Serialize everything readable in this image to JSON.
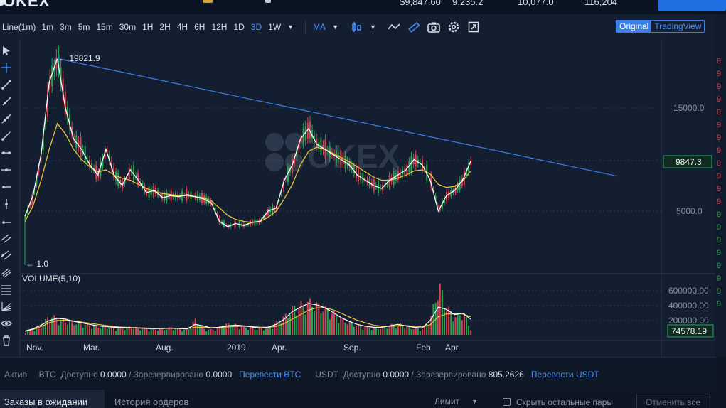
{
  "header": {
    "logo": "OKEX",
    "tickers": [
      "$9,847.60",
      "9,235.2",
      "10,077.0",
      "116,204"
    ]
  },
  "toolbar": {
    "chart_type": "Line(1m)",
    "intervals": [
      "1m",
      "3m",
      "5m",
      "15m",
      "30m",
      "1H",
      "2H",
      "4H",
      "6H",
      "12H",
      "1D",
      "3D",
      "1W"
    ],
    "active_interval": "3D",
    "indicator": "MA",
    "view_original": "Original",
    "view_tradingview": "TradingView"
  },
  "chart": {
    "watermark": "OKEX",
    "high_label": "← 19821.9",
    "low_label": "← 1.0",
    "price_axis": [
      "15000.0",
      "5000.0"
    ],
    "last_price": "9847.3",
    "volume_title": "VOLUME(5,10)",
    "volume_axis": [
      "600000.00",
      "400000.00",
      "200000.00"
    ],
    "last_volume": "74578.19",
    "time_axis": [
      "Nov.",
      "Mar.",
      "Aug.",
      "2019",
      "Apr.",
      "Sep.",
      "Feb.",
      "Apr."
    ]
  },
  "chart_data": {
    "type": "line",
    "title": "",
    "xlabel": "",
    "ylabel": "",
    "ylim": [
      0,
      22000
    ],
    "series": [
      {
        "values": [
          4500,
          6500,
          10500,
          17500,
          19821,
          15000,
          12000,
          11000,
          9500,
          8500,
          11000,
          8500,
          7500,
          9000,
          8000,
          6800,
          7000,
          6300,
          6500,
          6400,
          6600,
          6400,
          6200,
          5800,
          4000,
          3500,
          3800,
          3600,
          3900,
          4000,
          5000,
          5300,
          8000,
          9500,
          12000,
          13000,
          11500,
          11000,
          10500,
          10000,
          9500,
          8500,
          8000,
          7500,
          7200,
          8000,
          8500,
          9000,
          10000,
          9500,
          8000,
          5000,
          6500,
          7000,
          8000,
          9847
        ]
      },
      {
        "values": [
          4000,
          5500,
          8000,
          11000,
          13500,
          12500,
          11000,
          10000,
          9300,
          8800,
          9000,
          8500,
          8200,
          8000,
          7600,
          7200,
          6900,
          6700,
          6600,
          6500,
          6500,
          6400,
          6300,
          6000,
          5300,
          4600,
          4200,
          4000,
          3900,
          4000,
          4400,
          5000,
          6200,
          7600,
          9500,
          10800,
          11200,
          11000,
          10600,
          10200,
          9800,
          9300,
          8800,
          8300,
          8000,
          8000,
          8200,
          8500,
          8900,
          9000,
          8600,
          7600,
          7300,
          7400,
          7900,
          8900
        ]
      }
    ],
    "trendline": {
      "from": 19821.9,
      "to": 8400
    },
    "volume": {
      "values": [
        50000,
        80000,
        140000,
        280000,
        220000,
        200000,
        180000,
        160000,
        140000,
        120000,
        120000,
        100000,
        100000,
        120000,
        100000,
        90000,
        90000,
        90000,
        110000,
        90000,
        80000,
        220000,
        90000,
        80000,
        120000,
        160000,
        140000,
        120000,
        100000,
        90000,
        110000,
        180000,
        260000,
        380000,
        420000,
        460000,
        420000,
        360000,
        300000,
        220000,
        180000,
        140000,
        120000,
        100000,
        110000,
        140000,
        160000,
        120000,
        100000,
        90000,
        250000,
        700000,
        380000,
        260000,
        320000,
        74578
      ],
      "ma5": [
        60000,
        90000,
        140000,
        200000,
        230000,
        220000,
        190000,
        170000,
        150000,
        130000,
        120000,
        110000,
        105000,
        105000,
        100000,
        95000,
        92000,
        95000,
        100000,
        95000,
        90000,
        150000,
        130000,
        100000,
        110000,
        130000,
        140000,
        130000,
        115000,
        100000,
        110000,
        150000,
        220000,
        320000,
        380000,
        430000,
        410000,
        370000,
        310000,
        240000,
        190000,
        150000,
        125000,
        110000,
        110000,
        130000,
        150000,
        130000,
        110000,
        100000,
        200000,
        380000,
        350000,
        280000,
        300000,
        220000
      ],
      "ma10": [
        55000,
        80000,
        120000,
        170000,
        200000,
        205000,
        195000,
        180000,
        165000,
        150000,
        135000,
        120000,
        112000,
        108000,
        104000,
        100000,
        96000,
        95000,
        96000,
        95000,
        92000,
        110000,
        112000,
        108000,
        108000,
        115000,
        122000,
        125000,
        120000,
        112000,
        110000,
        122000,
        160000,
        220000,
        280000,
        340000,
        370000,
        370000,
        345000,
        300000,
        250000,
        205000,
        170000,
        140000,
        125000,
        122000,
        130000,
        132000,
        125000,
        115000,
        145000,
        250000,
        290000,
        290000,
        290000,
        250000
      ],
      "ylim": [
        0,
        700000
      ]
    }
  },
  "right_ticker": {
    "prices": [
      "9",
      "9",
      "9",
      "9",
      "9",
      "9",
      "9",
      "9",
      "9",
      "9",
      "9",
      "9",
      "9",
      "9",
      "9",
      "9",
      "9",
      "9",
      "9",
      "9"
    ]
  },
  "balance": {
    "label": "Актив",
    "btc": "BTC",
    "available": "Доступно",
    "btc_available": "0.0000",
    "reserved": "/ Зарезервировано",
    "btc_reserved": "0.0000",
    "transfer_btc": "Перевести BTC",
    "usdt": "USDT",
    "usdt_available": "0.0000",
    "usdt_reserved": "805.2626",
    "transfer_usdt": "Перевести USDT"
  },
  "orders": {
    "tab_pending": "Заказы в ожидании",
    "tab_history": "История ордеров",
    "order_type": "Лимит",
    "hide_pairs": "Скрыть остальные пары",
    "cancel_all": "Отменить все"
  },
  "colors": {
    "up": "#25a750",
    "down": "#e03e52",
    "ma_fast": "#ffffff",
    "ma_slow": "#f0c23a",
    "trend": "#3d7be6",
    "accent": "#3c7ee8"
  }
}
